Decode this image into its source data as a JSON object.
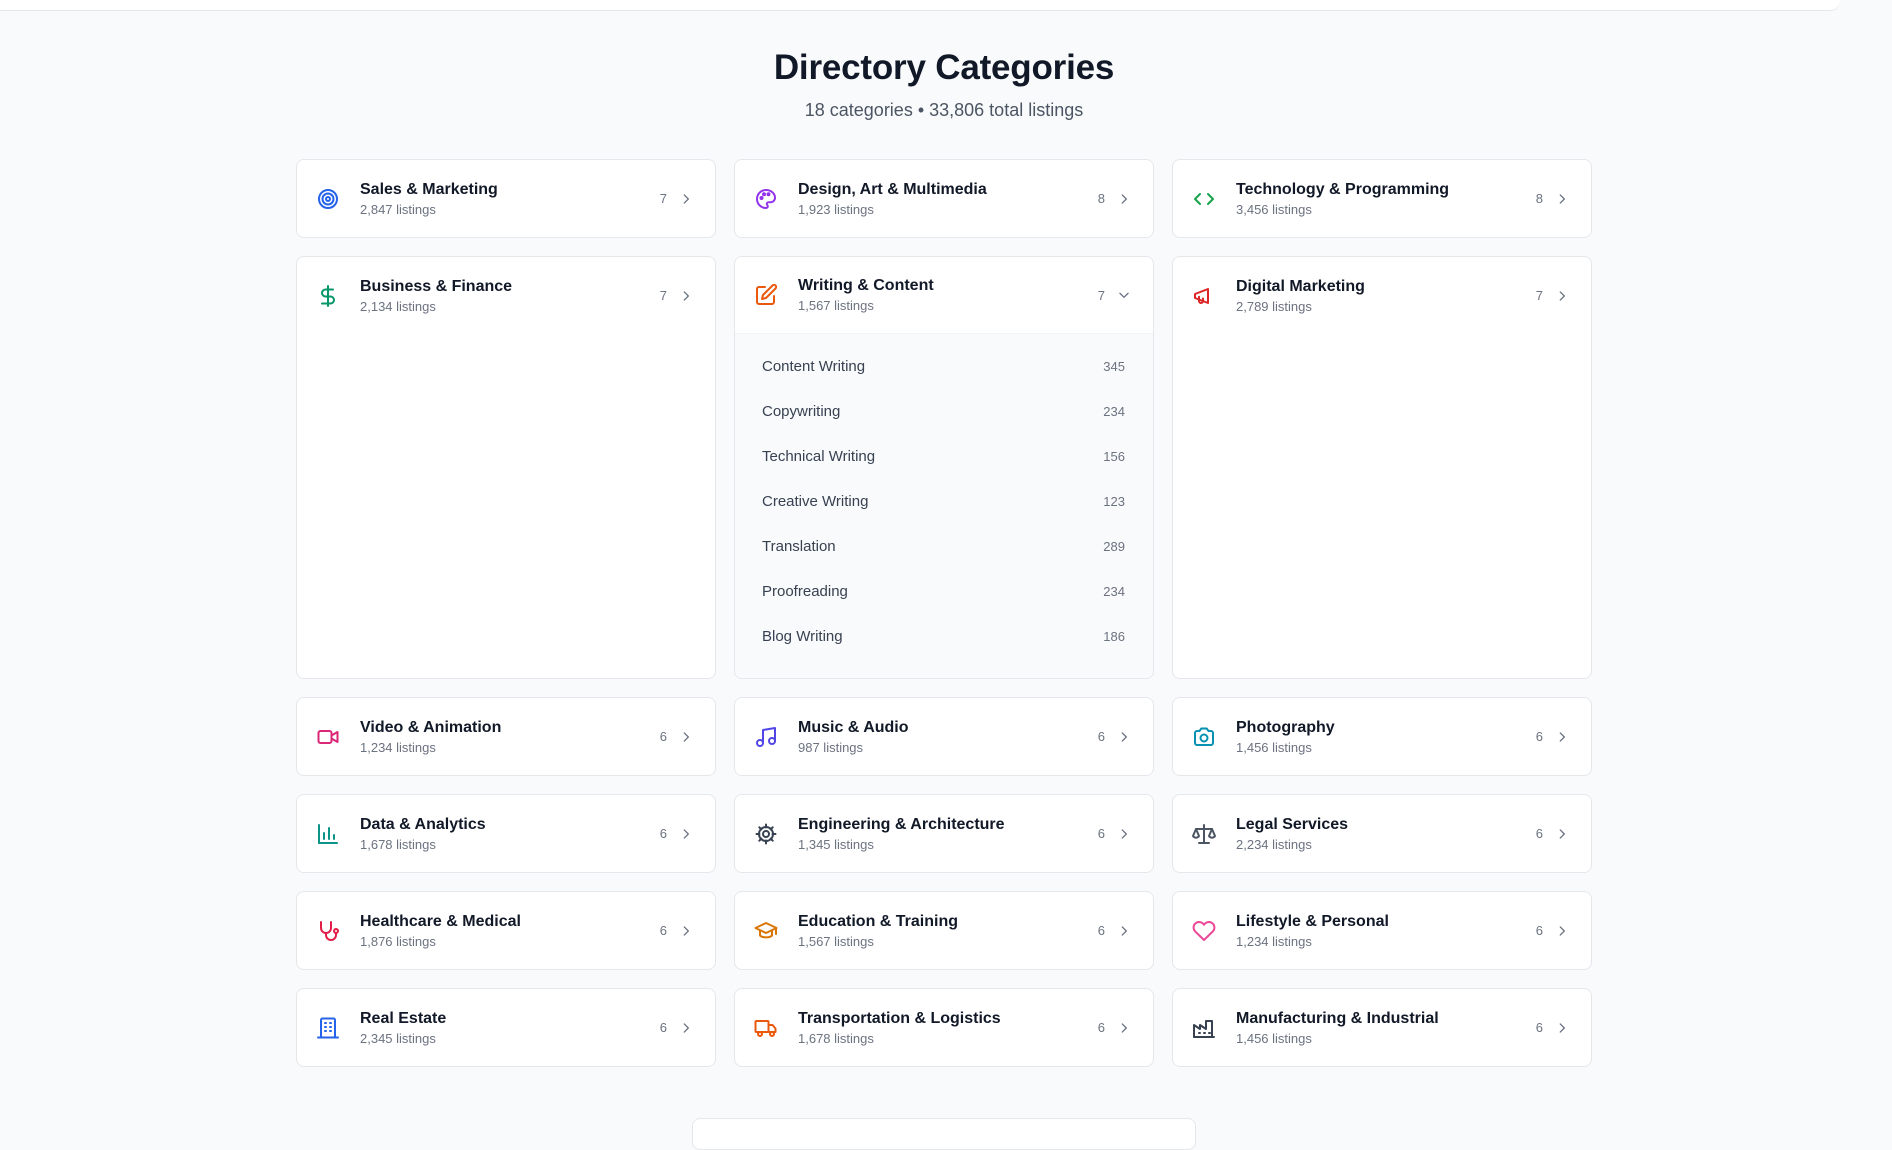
{
  "header": {
    "title": "Directory Categories",
    "subtitle": "18 categories • 33,806 total listings"
  },
  "categories": [
    {
      "name": "Sales & Marketing",
      "listings": "2,847 listings",
      "subcount": "7",
      "icon": "target-icon",
      "color": "#2563eb"
    },
    {
      "name": "Design, Art & Multimedia",
      "listings": "1,923 listings",
      "subcount": "8",
      "icon": "palette-icon",
      "color": "#9333ea"
    },
    {
      "name": "Technology & Programming",
      "listings": "3,456 listings",
      "subcount": "8",
      "icon": "code-icon",
      "color": "#16a34a"
    },
    {
      "name": "Business & Finance",
      "listings": "2,134 listings",
      "subcount": "7",
      "icon": "dollar-icon",
      "color": "#059669"
    },
    {
      "name": "Writing & Content",
      "listings": "1,567 listings",
      "subcount": "7",
      "icon": "edit-icon",
      "color": "#ea580c",
      "expanded": true,
      "subcategories": [
        {
          "name": "Content Writing",
          "count": "345"
        },
        {
          "name": "Copywriting",
          "count": "234"
        },
        {
          "name": "Technical Writing",
          "count": "156"
        },
        {
          "name": "Creative Writing",
          "count": "123"
        },
        {
          "name": "Translation",
          "count": "289"
        },
        {
          "name": "Proofreading",
          "count": "234"
        },
        {
          "name": "Blog Writing",
          "count": "186"
        }
      ]
    },
    {
      "name": "Digital Marketing",
      "listings": "2,789 listings",
      "subcount": "7",
      "icon": "megaphone-icon",
      "color": "#dc2626"
    },
    {
      "name": "Video & Animation",
      "listings": "1,234 listings",
      "subcount": "6",
      "icon": "video-icon",
      "color": "#db2777"
    },
    {
      "name": "Music & Audio",
      "listings": "987 listings",
      "subcount": "6",
      "icon": "music-icon",
      "color": "#4f46e5"
    },
    {
      "name": "Photography",
      "listings": "1,456 listings",
      "subcount": "6",
      "icon": "camera-icon",
      "color": "#0891b2"
    },
    {
      "name": "Data & Analytics",
      "listings": "1,678 listings",
      "subcount": "6",
      "icon": "bar-chart-icon",
      "color": "#0d9488"
    },
    {
      "name": "Engineering & Architecture",
      "listings": "1,345 listings",
      "subcount": "6",
      "icon": "cog-icon",
      "color": "#374151"
    },
    {
      "name": "Legal Services",
      "listings": "2,234 listings",
      "subcount": "6",
      "icon": "scale-icon",
      "color": "#4b5563"
    },
    {
      "name": "Healthcare & Medical",
      "listings": "1,876 listings",
      "subcount": "6",
      "icon": "stethoscope-icon",
      "color": "#e11d48"
    },
    {
      "name": "Education & Training",
      "listings": "1,567 listings",
      "subcount": "6",
      "icon": "graduation-cap-icon",
      "color": "#d97706"
    },
    {
      "name": "Lifestyle & Personal",
      "listings": "1,234 listings",
      "subcount": "6",
      "icon": "heart-icon",
      "color": "#ec4899"
    },
    {
      "name": "Real Estate",
      "listings": "2,345 listings",
      "subcount": "6",
      "icon": "building-icon",
      "color": "#2563eb"
    },
    {
      "name": "Transportation & Logistics",
      "listings": "1,678 listings",
      "subcount": "6",
      "icon": "truck-icon",
      "color": "#ea580c"
    },
    {
      "name": "Manufacturing & Industrial",
      "listings": "1,456 listings",
      "subcount": "6",
      "icon": "factory-icon",
      "color": "#374151"
    }
  ]
}
